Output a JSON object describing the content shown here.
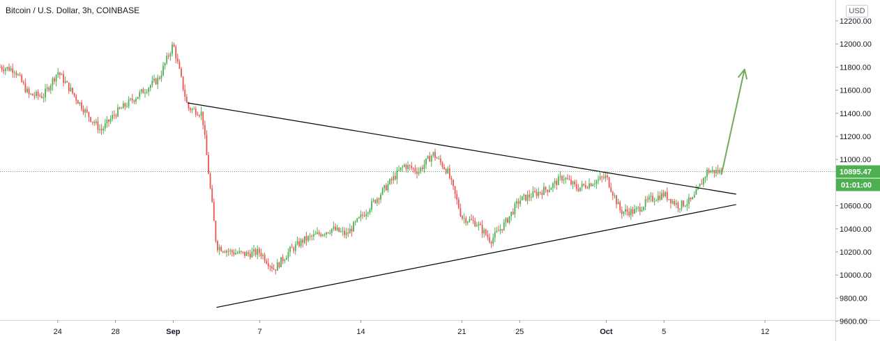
{
  "symbol": {
    "title": "Bitcoin / U.S. Dollar, 3h, COINBASE",
    "currency_button": "USD"
  },
  "colors": {
    "up": "#26a69a",
    "up_candle": "#4caf50",
    "down": "#ef5350",
    "trendline": "#000000",
    "arrow": "#6fab5b",
    "price_line": "#4caf50",
    "axis_border": "#d1d4dc"
  },
  "chart_data": {
    "type": "candlestick",
    "title": "Bitcoin / U.S. Dollar, 3h, COINBASE",
    "y_axis": {
      "ticks": [
        "12200.00",
        "12000.00",
        "11800.00",
        "11600.00",
        "11400.00",
        "11200.00",
        "11000.00",
        "10600.00",
        "10400.00",
        "10200.00",
        "10000.00",
        "9800.00",
        "9600.00"
      ],
      "range": [
        9600,
        12200
      ]
    },
    "x_axis": {
      "ticks": [
        "24",
        "28",
        "Sep",
        "7",
        "14",
        "21",
        "25",
        "Oct",
        "5",
        "12"
      ]
    },
    "last_price": "10895.47",
    "countdown": "01:01:00",
    "price_path": [
      {
        "t": "Aug 20",
        "price": 11800
      },
      {
        "t": "Aug 21",
        "price": 11780
      },
      {
        "t": "Aug 22",
        "price": 11560
      },
      {
        "t": "Aug 23",
        "price": 11550
      },
      {
        "t": "Aug 24",
        "price": 11760
      },
      {
        "t": "Aug 26",
        "price": 11400
      },
      {
        "t": "Aug 27",
        "price": 11250
      },
      {
        "t": "Aug 28",
        "price": 11400
      },
      {
        "t": "Aug 30",
        "price": 11600
      },
      {
        "t": "Aug 31",
        "price": 11700
      },
      {
        "t": "Sep 1",
        "price": 12000
      },
      {
        "t": "Sep 2",
        "price": 11450
      },
      {
        "t": "Sep 3",
        "price": 11400
      },
      {
        "t": "Sep 4",
        "price": 10250
      },
      {
        "t": "Sep 5",
        "price": 10200
      },
      {
        "t": "Sep 6",
        "price": 10180
      },
      {
        "t": "Sep 7",
        "price": 10200
      },
      {
        "t": "Sep 8",
        "price": 10050
      },
      {
        "t": "Sep 9",
        "price": 10200
      },
      {
        "t": "Sep 10",
        "price": 10300
      },
      {
        "t": "Sep 12",
        "price": 10400
      },
      {
        "t": "Sep 13",
        "price": 10350
      },
      {
        "t": "Sep 14",
        "price": 10500
      },
      {
        "t": "Sep 15",
        "price": 10650
      },
      {
        "t": "Sep 16",
        "price": 10800
      },
      {
        "t": "Sep 17",
        "price": 10950
      },
      {
        "t": "Sep 18",
        "price": 10900
      },
      {
        "t": "Sep 19",
        "price": 11050
      },
      {
        "t": "Sep 20",
        "price": 10900
      },
      {
        "t": "Sep 21",
        "price": 10500
      },
      {
        "t": "Sep 22",
        "price": 10450
      },
      {
        "t": "Sep 23",
        "price": 10300
      },
      {
        "t": "Sep 24",
        "price": 10450
      },
      {
        "t": "Sep 25",
        "price": 10650
      },
      {
        "t": "Sep 27",
        "price": 10750
      },
      {
        "t": "Sep 28",
        "price": 10850
      },
      {
        "t": "Sep 29",
        "price": 10750
      },
      {
        "t": "Sep 30",
        "price": 10800
      },
      {
        "t": "Oct 1",
        "price": 10850
      },
      {
        "t": "Oct 2",
        "price": 10550
      },
      {
        "t": "Oct 3",
        "price": 10550
      },
      {
        "t": "Oct 4",
        "price": 10650
      },
      {
        "t": "Oct 5",
        "price": 10700
      },
      {
        "t": "Oct 6",
        "price": 10600
      },
      {
        "t": "Oct 7",
        "price": 10650
      },
      {
        "t": "Oct 8",
        "price": 10900
      },
      {
        "t": "Oct 9",
        "price": 10895
      }
    ],
    "annotations": {
      "upper_trendline": [
        {
          "t": "Sep 2",
          "price": 11490
        },
        {
          "t": "Oct 10",
          "price": 10700
        }
      ],
      "lower_trendline": [
        {
          "t": "Sep 4",
          "price": 9720
        },
        {
          "t": "Oct 10",
          "price": 10610
        }
      ],
      "breakout_arrow": [
        {
          "t": "Oct 9",
          "price": 10880
        },
        {
          "t": "Oct 10",
          "price": 11780
        }
      ]
    }
  }
}
